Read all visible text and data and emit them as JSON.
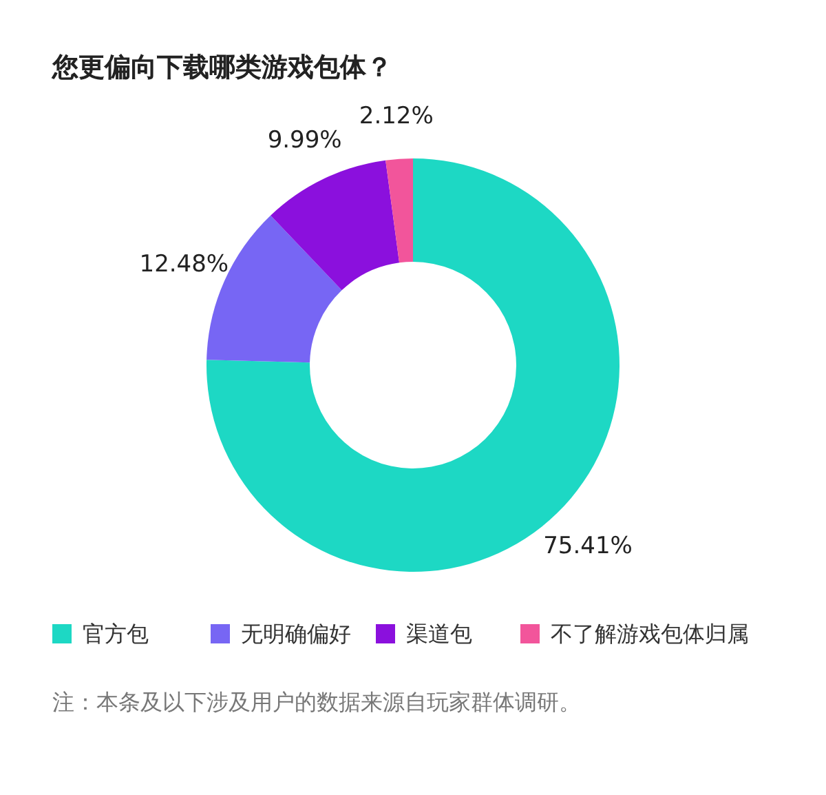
{
  "chart_data": {
    "type": "donut",
    "title": "您更偏向下载哪类游戏包体？",
    "categories": [
      "官方包",
      "无明确偏好",
      "渠道包",
      "不了解游戏包体归属"
    ],
    "values": [
      75.41,
      12.48,
      9.99,
      2.12
    ],
    "colors": [
      "#1dd8c4",
      "#7766f4",
      "#8b10dd",
      "#f2559b"
    ],
    "value_labels": [
      "75.41%",
      "12.48%",
      "9.99%",
      "2.12%"
    ],
    "legend": "bottom",
    "annotations": [
      "注：本条及以下涉及用户的数据来源自玩家群体调研。"
    ]
  }
}
